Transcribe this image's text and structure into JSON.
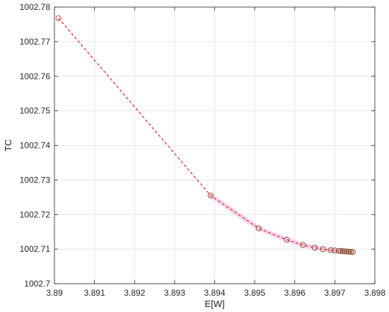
{
  "chart_data": {
    "type": "line",
    "xlabel": "E[W]",
    "ylabel": "TC",
    "xlim": [
      3.89,
      3.898
    ],
    "ylim": [
      1002.7,
      1002.78
    ],
    "x_ticks": [
      "3.89",
      "3.891",
      "3.892",
      "3.893",
      "3.894",
      "3.895",
      "3.896",
      "3.897",
      "3.898"
    ],
    "y_ticks": [
      "1002.7",
      "1002.71",
      "1002.72",
      "1002.73",
      "1002.74",
      "1002.75",
      "1002.76",
      "1002.77",
      "1002.78"
    ],
    "grid": true,
    "series": [
      {
        "x": [
          3.8901,
          3.8939,
          3.8951,
          3.8958,
          3.8962,
          3.8965,
          3.8967,
          3.8969,
          3.897,
          3.8971,
          3.89715,
          3.8972,
          3.89725,
          3.8973,
          3.89735,
          3.8974,
          3.89745
        ],
        "y": [
          1002.7768,
          1002.7255,
          1002.716,
          1002.7127,
          1002.7112,
          1002.7104,
          1002.71,
          1002.7097,
          1002.7096,
          1002.7095,
          1002.70945,
          1002.7094,
          1002.70935,
          1002.7093,
          1002.70925,
          1002.7092,
          1002.70915
        ]
      }
    ],
    "colors": {
      "line": "#e8241f",
      "first_marker": "#e8241f",
      "marker": "#7a4a1f",
      "highlight": "#f7c9ec",
      "grid": "#e6e6e6",
      "axis": "#262626"
    }
  }
}
